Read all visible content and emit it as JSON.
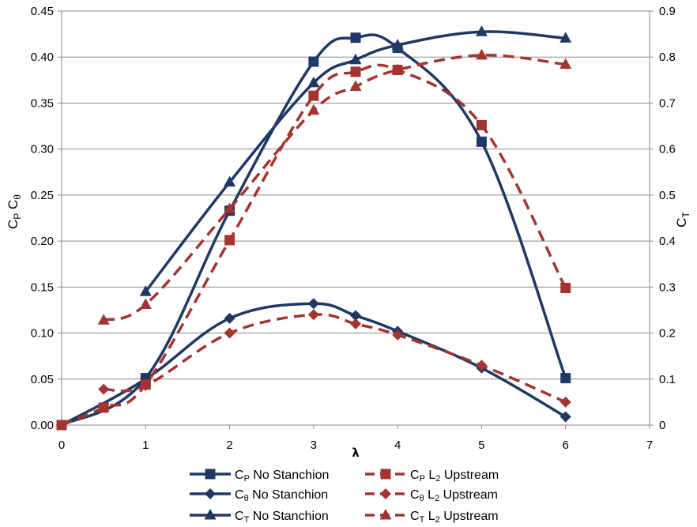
{
  "chart_data": {
    "type": "line",
    "xlabel": "λ",
    "ylabel_left": {
      "main1": "C",
      "sub1": "P",
      "main2": " C",
      "sub2": "θ"
    },
    "ylabel_right": {
      "main": "C",
      "sub": "T"
    },
    "xlim": [
      0,
      7
    ],
    "ylim_left": [
      0,
      0.45
    ],
    "ylim_right": [
      0,
      0.9
    ],
    "x_ticks": [
      "0",
      "1",
      "2",
      "3",
      "4",
      "5",
      "6",
      "7"
    ],
    "y_left_ticks": [
      "0.00",
      "0.05",
      "0.10",
      "0.15",
      "0.20",
      "0.25",
      "0.30",
      "0.35",
      "0.40",
      "0.45"
    ],
    "y_right_ticks": [
      "0",
      "0.1",
      "0.2",
      "0.3",
      "0.4",
      "0.5",
      "0.6",
      "0.7",
      "0.8",
      "0.9"
    ],
    "grid": "horizontal",
    "legend_position": "bottom",
    "colors": {
      "navy": "#1f3864",
      "red": "#a33432"
    },
    "series": [
      {
        "name": "CP No Stanchion",
        "label_main": "C",
        "label_sub": "P",
        "label_rest": " No Stanchion",
        "axis": "left",
        "color": "#1f3864",
        "dash": false,
        "marker": "square",
        "points": [
          [
            0,
            0.0
          ],
          [
            1,
            0.051
          ],
          [
            2,
            0.233
          ],
          [
            3,
            0.395
          ],
          [
            3.5,
            0.421
          ],
          [
            4,
            0.41
          ],
          [
            5,
            0.308
          ],
          [
            6,
            0.051
          ]
        ]
      },
      {
        "name": "Cθ No Stanchion",
        "label_main": "C",
        "label_sub": "θ",
        "label_rest": " No Stanchion",
        "axis": "left",
        "color": "#1f3864",
        "dash": false,
        "marker": "diamond",
        "points": [
          [
            0,
            0.0
          ],
          [
            1,
            0.05
          ],
          [
            2,
            0.116
          ],
          [
            3,
            0.132
          ],
          [
            3.5,
            0.119
          ],
          [
            4,
            0.102
          ],
          [
            5,
            0.062
          ],
          [
            6,
            0.009
          ]
        ]
      },
      {
        "name": "CT No Stanchion",
        "label_main": "C",
        "label_sub": "T",
        "label_rest": " No Stanchion",
        "axis": "right",
        "color": "#1f3864",
        "dash": false,
        "marker": "triangle",
        "points": [
          [
            1,
            0.29
          ],
          [
            2,
            0.528
          ],
          [
            3,
            0.744
          ],
          [
            3.5,
            0.794
          ],
          [
            4,
            0.826
          ],
          [
            5,
            0.855
          ],
          [
            6,
            0.841
          ]
        ]
      },
      {
        "name": "CP L2 Upstream",
        "label_main": "C",
        "label_sub": "P",
        "label_rest": " L",
        "label_sub2": "2",
        "label_rest2": " Upstream",
        "axis": "left",
        "color": "#a33432",
        "dash": true,
        "marker": "square",
        "points": [
          [
            0,
            0.0
          ],
          [
            0.5,
            0.019
          ],
          [
            1,
            0.044
          ],
          [
            2,
            0.201
          ],
          [
            3,
            0.358
          ],
          [
            3.5,
            0.384
          ],
          [
            4,
            0.386
          ],
          [
            5,
            0.326
          ],
          [
            6,
            0.149
          ]
        ]
      },
      {
        "name": "Cθ L2 Upstream",
        "label_main": "C",
        "label_sub": "θ",
        "label_rest": " L",
        "label_sub2": "2",
        "label_rest2": " Upstream",
        "axis": "left",
        "color": "#a33432",
        "dash": true,
        "marker": "diamond",
        "points": [
          [
            0.5,
            0.039
          ],
          [
            1,
            0.043
          ],
          [
            2,
            0.1
          ],
          [
            3,
            0.12
          ],
          [
            3.5,
            0.11
          ],
          [
            4,
            0.098
          ],
          [
            5,
            0.065
          ],
          [
            6,
            0.025
          ]
        ]
      },
      {
        "name": "CT L2 Upstream",
        "label_main": "C",
        "label_sub": "T",
        "label_rest": " L",
        "label_sub2": "2",
        "label_rest2": " Upstream",
        "axis": "right",
        "color": "#a33432",
        "dash": true,
        "marker": "triangle",
        "points": [
          [
            0.5,
            0.228
          ],
          [
            1,
            0.262
          ],
          [
            2,
            0.47
          ],
          [
            3,
            0.684
          ],
          [
            3.5,
            0.736
          ],
          [
            4,
            0.772
          ],
          [
            5,
            0.804
          ],
          [
            6,
            0.784
          ]
        ]
      }
    ]
  }
}
